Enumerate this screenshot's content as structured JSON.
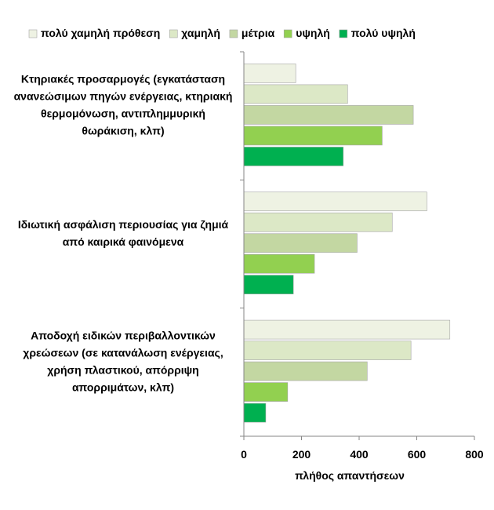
{
  "chart_data": {
    "type": "bar",
    "orientation": "horizontal",
    "xlabel": "πλήθος απαντήσεων",
    "xlim": [
      0,
      800
    ],
    "xticks": [
      "0",
      "200",
      "400",
      "600",
      "800"
    ],
    "grid": false,
    "legend_position": "top",
    "categories": [
      {
        "lines": [
          "Κτηριακές προσαρμογές  (εγκατάσταση",
          "ανανεώσιμων πηγών ενέργειας, κτηριακή",
          "θερμομόνωση, αντιπλημμυρική",
          "θωράκιση, κλπ)"
        ]
      },
      {
        "lines": [
          "Ιδιωτική ασφάλιση περιουσίας για ζημιά",
          "από καιρικά φαινόμενα"
        ]
      },
      {
        "lines": [
          "Αποδοχή ειδικών περιβαλλοντικών",
          "χρεώσεων (σε κατανάλωση ενέργειας,",
          "χρήση πλαστικού, απόρριψη",
          "απορριμάτων, κλπ)"
        ]
      }
    ],
    "series": [
      {
        "name": "πολύ χαμηλή πρόθεση",
        "color": "#eef2e3",
        "values": [
          180,
          635,
          715
        ]
      },
      {
        "name": "χαμηλή",
        "color": "#dce8c6",
        "values": [
          360,
          515,
          580
        ]
      },
      {
        "name": "μέτρια",
        "color": "#c3d7a2",
        "values": [
          588,
          393,
          428
        ]
      },
      {
        "name": "υψηλή",
        "color": "#92d050",
        "values": [
          480,
          245,
          152
        ]
      },
      {
        "name": "πολύ υψηλή",
        "color": "#00b050",
        "values": [
          345,
          172,
          76
        ]
      }
    ]
  }
}
